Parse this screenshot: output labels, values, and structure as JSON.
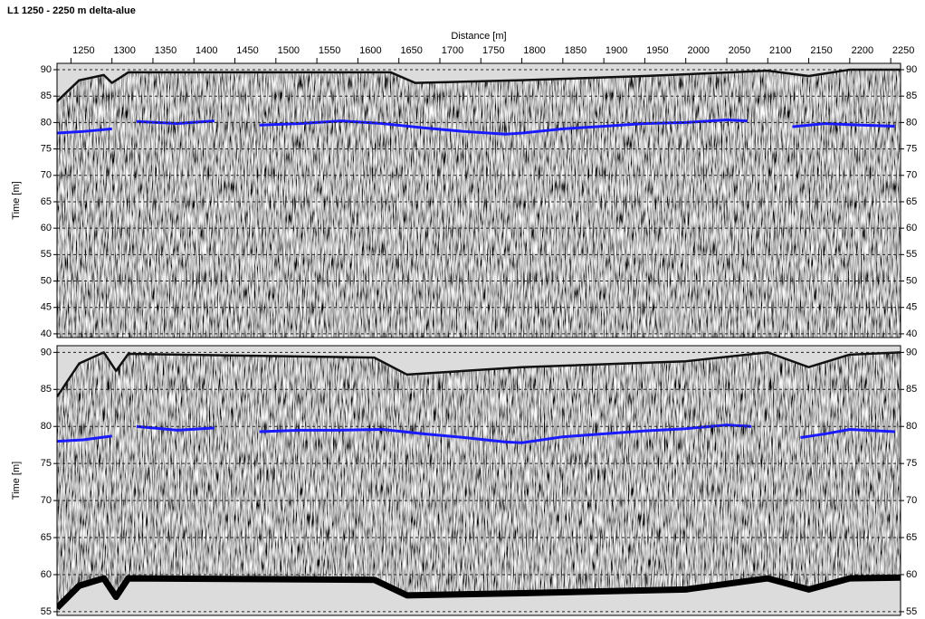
{
  "title": "L1 1250 - 2250 m delta-alue",
  "chart_data": [
    {
      "type": "radargram",
      "xlabel": "Distance [m]",
      "ylabel": "Time [m]",
      "xlim": [
        1233,
        2262
      ],
      "xticks": [
        1250,
        1300,
        1350,
        1400,
        1450,
        1500,
        1550,
        1600,
        1650,
        1700,
        1750,
        1800,
        1850,
        1900,
        1950,
        2000,
        2050,
        2100,
        2150,
        2200,
        2250
      ],
      "ylim": [
        39.3,
        91.2
      ],
      "yticks": [
        40,
        45,
        50,
        55,
        60,
        65,
        70,
        75,
        80,
        85,
        90
      ],
      "grid": true,
      "series": [
        {
          "color": "#111111",
          "fill": "above",
          "x": [
            1233,
            1260,
            1290,
            1300,
            1320,
            1450,
            1640,
            1670,
            1800,
            1950,
            2100,
            2150,
            2200,
            2262
          ],
          "values": [
            84,
            88,
            89,
            87.5,
            89.5,
            89.5,
            89.5,
            87.5,
            88,
            88.8,
            89.8,
            88.8,
            90,
            90
          ]
        },
        {
          "color": "#1a1aff",
          "x": [
            1233,
            1265,
            1300,
            1315,
            1330,
            1380,
            1425,
            1450,
            1480,
            1530,
            1580,
            1630,
            1680,
            1730,
            1780,
            1800,
            1850,
            1900,
            1950,
            2000,
            2050,
            2075,
            2100,
            2130,
            2170,
            2200,
            2255
          ],
          "values": [
            78,
            78.3,
            78.8,
            null,
            80.2,
            79.8,
            80.3,
            null,
            79.5,
            79.8,
            80.3,
            79.8,
            79,
            78.3,
            77.8,
            78,
            78.8,
            79.3,
            79.8,
            80,
            80.5,
            80.3,
            null,
            79.2,
            79.8,
            79.6,
            79.3
          ]
        }
      ]
    },
    {
      "type": "radargram",
      "ylabel": "Time [m]",
      "xlim": [
        1233,
        2262
      ],
      "ylim": [
        54.5,
        90.9
      ],
      "yticks": [
        55,
        60,
        65,
        70,
        75,
        80,
        85,
        90
      ],
      "grid": true,
      "series": [
        {
          "color": "#111111",
          "fill": "above",
          "x": [
            1233,
            1260,
            1290,
            1305,
            1320,
            1620,
            1660,
            1800,
            2000,
            2100,
            2150,
            2200,
            2262
          ],
          "values": [
            84,
            88.5,
            90,
            87.5,
            89.8,
            89.3,
            87,
            88,
            88.8,
            90,
            88,
            89.7,
            90
          ]
        },
        {
          "color": "#000000",
          "fill": "below",
          "x": [
            1233,
            1260,
            1290,
            1305,
            1320,
            1620,
            1660,
            1800,
            2000,
            2100,
            2150,
            2200,
            2262
          ],
          "values": [
            55.5,
            58.5,
            59.5,
            57,
            59.5,
            59.3,
            57.2,
            57.5,
            58,
            59.5,
            58,
            59.5,
            59.6
          ]
        },
        {
          "color": "#1a1aff",
          "x": [
            1233,
            1265,
            1300,
            1315,
            1330,
            1380,
            1425,
            1450,
            1480,
            1530,
            1580,
            1630,
            1680,
            1730,
            1780,
            1800,
            1850,
            1900,
            1950,
            2000,
            2050,
            2080,
            2110,
            2140,
            2170,
            2200,
            2255
          ],
          "values": [
            78,
            78.2,
            78.7,
            null,
            80,
            79.5,
            79.8,
            null,
            79.3,
            79.5,
            79.5,
            79.6,
            79,
            78.5,
            77.9,
            77.8,
            78.6,
            79,
            79.4,
            79.7,
            80.2,
            80,
            null,
            78.5,
            79,
            79.6,
            79.3
          ]
        }
      ]
    }
  ]
}
